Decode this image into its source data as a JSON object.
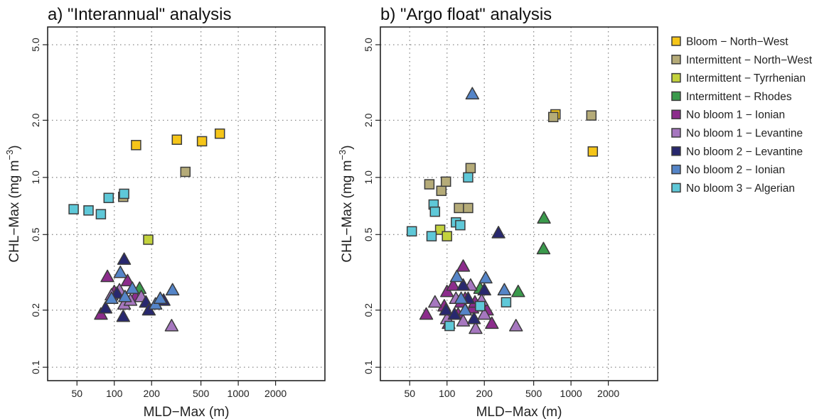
{
  "chart_data": [
    {
      "panel": "a",
      "type": "scatter",
      "title": "a) \"Interannual\" analysis",
      "xlabel": "MLD−Max (m)",
      "ylabel_main": "CHL−Max (mg m",
      "ylabel_sup": "−3",
      "ylabel_tail": ")",
      "xscale": "log",
      "yscale": "log",
      "xlim": [
        29,
        5000
      ],
      "ylim": [
        0.085,
        6.2
      ],
      "xticks": [
        50,
        100,
        200,
        500,
        1000,
        2000
      ],
      "xtick_labels": [
        "50",
        "100",
        "200",
        "500",
        "1000",
        "2000"
      ],
      "yticks": [
        0.1,
        0.2,
        0.5,
        1.0,
        2.0,
        5.0
      ],
      "ytick_labels": [
        "0.1",
        "0.2",
        "0.5",
        "1.0",
        "2.0",
        "5.0"
      ],
      "grid": true,
      "series": [
        {
          "name": "Bloom − North−West",
          "points": [
            [
              150,
              1.48
            ],
            [
              320,
              1.58
            ],
            [
              510,
              1.55
            ],
            [
              710,
              1.7
            ]
          ]
        },
        {
          "name": "Intermittent − North−West",
          "points": [
            [
              118,
              0.79
            ],
            [
              375,
              1.07
            ]
          ]
        },
        {
          "name": "Intermittent − Tyrrhenian",
          "points": [
            [
              188,
              0.47
            ]
          ]
        },
        {
          "name": "Intermittent − Rhodes",
          "points": [
            [
              160,
              0.26
            ]
          ]
        },
        {
          "name": "No bloom 1 − Ionian",
          "points": [
            [
              78,
              0.19
            ],
            [
              88,
              0.3
            ],
            [
              100,
              0.25
            ],
            [
              128,
              0.285
            ],
            [
              148,
              0.235
            ]
          ]
        },
        {
          "name": "No bloom 1 − Levantine",
          "points": [
            [
              95,
              0.24
            ],
            [
              110,
              0.255
            ],
            [
              120,
              0.215
            ],
            [
              135,
              0.225
            ],
            [
              165,
              0.235
            ],
            [
              290,
              0.165
            ]
          ]
        },
        {
          "name": "No bloom 2 − Levantine",
          "points": [
            [
              85,
              0.205
            ],
            [
              105,
              0.245
            ],
            [
              118,
              0.185
            ],
            [
              120,
              0.37
            ],
            [
              180,
              0.22
            ],
            [
              190,
              0.2
            ],
            [
              250,
              0.225
            ]
          ]
        },
        {
          "name": "No bloom 2 − Ionian",
          "points": [
            [
              95,
              0.23
            ],
            [
              112,
              0.315
            ],
            [
              122,
              0.235
            ],
            [
              140,
              0.26
            ],
            [
              215,
              0.215
            ],
            [
              235,
              0.23
            ],
            [
              295,
              0.255
            ]
          ]
        },
        {
          "name": "No bloom 3 − Algerian",
          "points": [
            [
              47,
              0.68
            ],
            [
              62,
              0.67
            ],
            [
              78,
              0.64
            ],
            [
              90,
              0.78
            ],
            [
              120,
              0.82
            ]
          ]
        }
      ]
    },
    {
      "panel": "b",
      "type": "scatter",
      "title": "b) \"Argo float\" analysis",
      "xlabel": "MLD−Max (m)",
      "ylabel_main": "CHL−Max (mg m",
      "ylabel_sup": "−3",
      "ylabel_tail": ")",
      "xscale": "log",
      "yscale": "log",
      "xlim": [
        29,
        5000
      ],
      "ylim": [
        0.085,
        6.2
      ],
      "xticks": [
        50,
        100,
        200,
        500,
        1000,
        2000
      ],
      "xtick_labels": [
        "50",
        "100",
        "200",
        "500",
        "1000",
        "2000"
      ],
      "yticks": [
        0.1,
        0.2,
        0.5,
        1.0,
        2.0,
        5.0
      ],
      "ytick_labels": [
        "0.1",
        "0.2",
        "0.5",
        "1.0",
        "2.0",
        "5.0"
      ],
      "grid": true,
      "series": [
        {
          "name": "Bloom − North−West",
          "points": [
            [
              750,
              2.15
            ],
            [
              1500,
              1.37
            ]
          ]
        },
        {
          "name": "Intermittent − North−West",
          "points": [
            [
              72,
              0.92
            ],
            [
              90,
              0.85
            ],
            [
              98,
              0.95
            ],
            [
              125,
              0.69
            ],
            [
              148,
              0.69
            ],
            [
              155,
              1.12
            ],
            [
              720,
              2.08
            ],
            [
              1460,
              2.12
            ]
          ]
        },
        {
          "name": "Intermittent − Tyrrhenian",
          "points": [
            [
              88,
              0.53
            ],
            [
              100,
              0.49
            ]
          ]
        },
        {
          "name": "Intermittent − Rhodes",
          "points": [
            [
              185,
              0.26
            ],
            [
              375,
              0.25
            ],
            [
              600,
              0.42
            ],
            [
              605,
              0.61
            ]
          ]
        },
        {
          "name": "No bloom 1 − Ionian",
          "points": [
            [
              68,
              0.19
            ],
            [
              95,
              0.21
            ],
            [
              100,
              0.25
            ],
            [
              103,
              0.17
            ],
            [
              112,
              0.27
            ],
            [
              123,
              0.19
            ],
            [
              130,
              0.22
            ],
            [
              135,
              0.34
            ],
            [
              140,
              0.23
            ],
            [
              160,
              0.205
            ],
            [
              168,
              0.22
            ],
            [
              200,
              0.21
            ],
            [
              210,
              0.2
            ],
            [
              230,
              0.17
            ]
          ]
        },
        {
          "name": "No bloom 1 − Levantine",
          "points": [
            [
              80,
              0.22
            ],
            [
              100,
              0.18
            ],
            [
              118,
              0.23
            ],
            [
              135,
              0.175
            ],
            [
              155,
              0.27
            ],
            [
              170,
              0.16
            ],
            [
              190,
              0.225
            ],
            [
              200,
              0.19
            ],
            [
              360,
              0.165
            ]
          ]
        },
        {
          "name": "No bloom 2 − Levantine",
          "points": [
            [
              98,
              0.2
            ],
            [
              115,
              0.19
            ],
            [
              135,
              0.27
            ],
            [
              148,
              0.23
            ],
            [
              165,
              0.18
            ],
            [
              200,
              0.255
            ],
            [
              260,
              0.51
            ]
          ]
        },
        {
          "name": "No bloom 2 − Ionian",
          "points": [
            [
              120,
              0.3
            ],
            [
              130,
              0.23
            ],
            [
              140,
              0.2
            ],
            [
              160,
              2.75
            ],
            [
              205,
              0.295
            ],
            [
              290,
              0.255
            ]
          ]
        },
        {
          "name": "No bloom 3 − Algerian",
          "points": [
            [
              52,
              0.52
            ],
            [
              75,
              0.49
            ],
            [
              78,
              0.72
            ],
            [
              80,
              0.66
            ],
            [
              105,
              0.165
            ],
            [
              118,
              0.58
            ],
            [
              128,
              0.56
            ],
            [
              148,
              1.0
            ],
            [
              185,
              0.21
            ],
            [
              300,
              0.22
            ]
          ]
        }
      ]
    }
  ],
  "legend": {
    "placement": "right",
    "items": [
      {
        "label": "Bloom − North−West",
        "shape": "square",
        "color": "#f5c518"
      },
      {
        "label": "Intermittent − North−West",
        "shape": "square",
        "color": "#b5ab78"
      },
      {
        "label": "Intermittent − Tyrrhenian",
        "shape": "square",
        "color": "#c3d23c"
      },
      {
        "label": "Intermittent − Rhodes",
        "shape": "triangle",
        "color": "#3a9a4c"
      },
      {
        "label": "No bloom 1 − Ionian",
        "shape": "triangle",
        "color": "#8c2c8c"
      },
      {
        "label": "No bloom 1 − Levantine",
        "shape": "triangle",
        "color": "#a677bf"
      },
      {
        "label": "No bloom 2 − Levantine",
        "shape": "triangle",
        "color": "#28286e"
      },
      {
        "label": "No bloom 2 − Ionian",
        "shape": "triangle",
        "color": "#5585c8"
      },
      {
        "label": "No bloom 3 − Algerian",
        "shape": "square",
        "color": "#5ec8d8"
      }
    ]
  }
}
